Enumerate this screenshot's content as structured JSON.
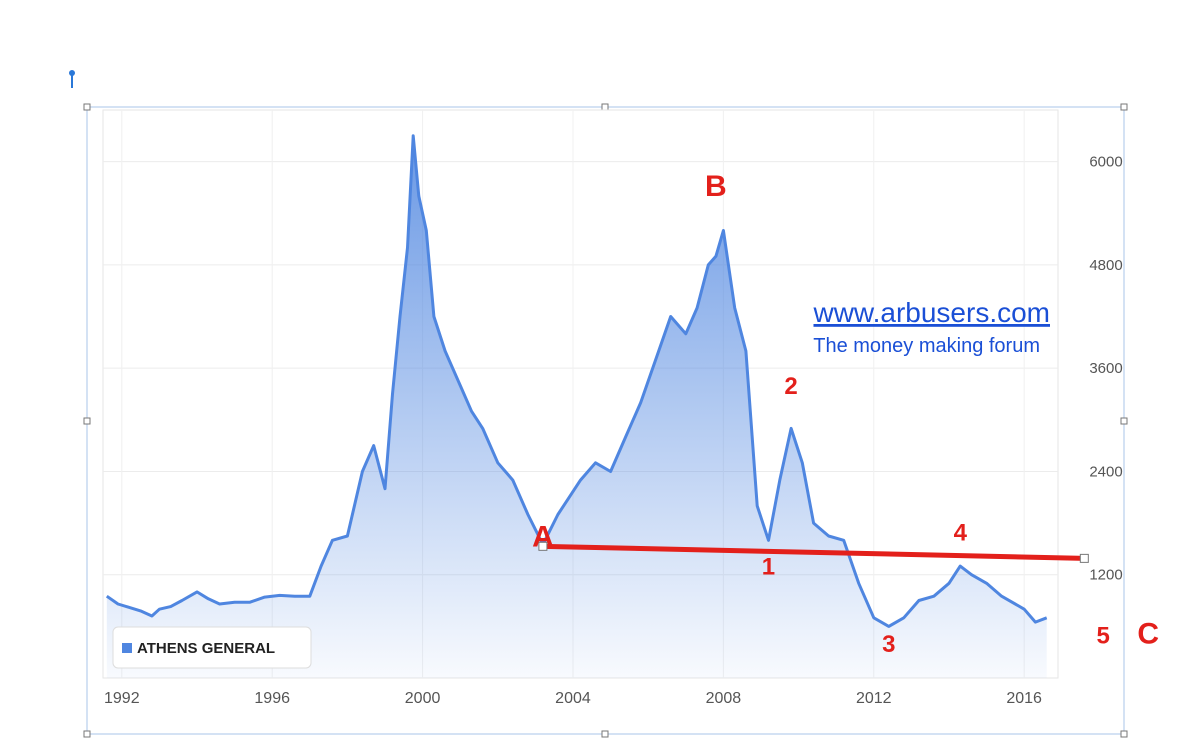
{
  "chart_data": {
    "type": "area",
    "series": [
      {
        "name": "ATHENS GENERAL",
        "x": [
          1991.6,
          1991.9,
          1992.2,
          1992.5,
          1992.8,
          1993.0,
          1993.3,
          1993.6,
          1994.0,
          1994.3,
          1994.6,
          1995.0,
          1995.4,
          1995.8,
          1996.2,
          1996.6,
          1997.0,
          1997.3,
          1997.6,
          1998.0,
          1998.4,
          1998.7,
          1999.0,
          1999.2,
          1999.4,
          1999.6,
          1999.75,
          1999.9,
          2000.1,
          2000.3,
          2000.6,
          2001.0,
          2001.3,
          2001.6,
          2002.0,
          2002.4,
          2002.8,
          2003.2,
          2003.6,
          2003.9,
          2004.2,
          2004.6,
          2005.0,
          2005.4,
          2005.8,
          2006.2,
          2006.6,
          2007.0,
          2007.3,
          2007.6,
          2007.8,
          2008.0,
          2008.3,
          2008.6,
          2008.9,
          2009.2,
          2009.5,
          2009.8,
          2010.1,
          2010.4,
          2010.8,
          2011.2,
          2011.6,
          2012.0,
          2012.4,
          2012.8,
          2013.2,
          2013.6,
          2014.0,
          2014.3,
          2014.6,
          2015.0,
          2015.4,
          2015.8,
          2016.0,
          2016.3,
          2016.6
        ],
        "y": [
          950,
          860,
          820,
          780,
          720,
          800,
          830,
          900,
          1000,
          920,
          860,
          880,
          880,
          940,
          960,
          950,
          950,
          1300,
          1600,
          1650,
          2400,
          2700,
          2200,
          3300,
          4200,
          5000,
          6300,
          5600,
          5200,
          4200,
          3800,
          3400,
          3100,
          2900,
          2500,
          2300,
          1900,
          1550,
          1900,
          2100,
          2300,
          2500,
          2400,
          2800,
          3200,
          3700,
          4200,
          4000,
          4300,
          4800,
          4900,
          5200,
          4300,
          3800,
          2000,
          1600,
          2300,
          2900,
          2500,
          1800,
          1650,
          1600,
          1100,
          700,
          600,
          700,
          900,
          950,
          1100,
          1300,
          1200,
          1100,
          950,
          850,
          800,
          650,
          700
        ]
      }
    ],
    "xlim": [
      1991.5,
      2016.9
    ],
    "ylim": [
      0,
      6600
    ],
    "x_ticks": [
      "1992",
      "1996",
      "2000",
      "2004",
      "2008",
      "2012",
      "2016"
    ],
    "y_ticks": [
      "1200",
      "2400",
      "3600",
      "4800",
      "6000"
    ],
    "y_tick_values": [
      1200,
      2400,
      3600,
      4800,
      6000
    ],
    "x_tick_values": [
      1992,
      1996,
      2000,
      2004,
      2008,
      2012,
      2016
    ],
    "grid": true,
    "legend_position": "bottom-left",
    "color": "#4f86e0",
    "trendline": {
      "x": [
        2003.2,
        2017.6
      ],
      "y": [
        1530,
        1390
      ],
      "color": "#e3201b"
    },
    "annotations": [
      {
        "text": "A",
        "x": 2003.2,
        "y": 1530
      },
      {
        "text": "B",
        "x": 2007.8,
        "y": 5600
      },
      {
        "text": "1",
        "x": 2009.2,
        "y": 1200
      },
      {
        "text": "2",
        "x": 2009.8,
        "y": 3300
      },
      {
        "text": "3",
        "x": 2012.4,
        "y": 300
      },
      {
        "text": "4",
        "x": 2014.3,
        "y": 1600
      },
      {
        "text": "5",
        "x": 2018.1,
        "y": 400
      },
      {
        "text": "C",
        "x": 2019.3,
        "y": 400
      }
    ],
    "watermark": {
      "url": "www.arbusers.com",
      "subtitle": "The money making forum"
    }
  },
  "colors": {
    "line": "#4f86e0",
    "annotation": "#e3201b",
    "watermark": "#1a4fd6",
    "selection_frame": "#a9c4ea"
  }
}
